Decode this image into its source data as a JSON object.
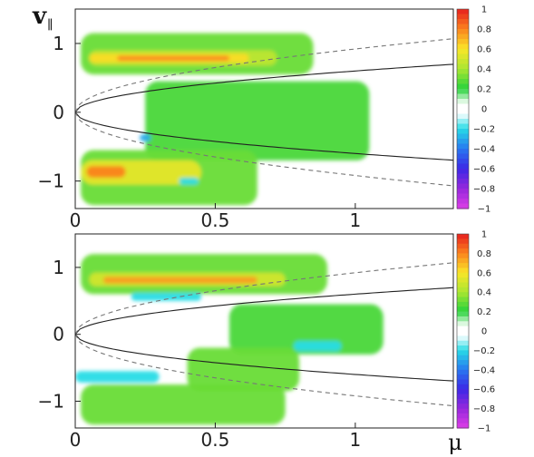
{
  "chart_data": [
    {
      "type": "heatmap",
      "panel": "top",
      "xlabel": "",
      "ylabel": "v∥",
      "x_ticks": [
        "0",
        "0.5",
        "1"
      ],
      "y_ticks": [
        "1",
        "0",
        "−1"
      ],
      "xlim": [
        0,
        1.35
      ],
      "ylim": [
        -1.4,
        1.5
      ],
      "colorbar": {
        "ticks": [
          "1",
          "0.8",
          "0.6",
          "0.4",
          "0.2",
          "0",
          "−0.2",
          "−0.4",
          "−0.6",
          "−0.8",
          "−1"
        ],
        "range": [
          -1,
          1
        ]
      },
      "blobs": [
        {
          "mu": [
            0.02,
            0.85
          ],
          "v": [
            0.55,
            1.15
          ],
          "value": 0.3
        },
        {
          "mu": [
            0.05,
            0.72
          ],
          "v": [
            0.68,
            0.9
          ],
          "value": 0.45
        },
        {
          "mu": [
            0.05,
            0.62
          ],
          "v": [
            0.72,
            0.85
          ],
          "value": 0.62
        },
        {
          "mu": [
            0.15,
            0.55
          ],
          "v": [
            0.75,
            0.82
          ],
          "value": 0.8
        },
        {
          "mu": [
            0.25,
            1.05
          ],
          "v": [
            -0.7,
            0.45
          ],
          "value": 0.25
        },
        {
          "mu": [
            0.02,
            0.65
          ],
          "v": [
            -1.35,
            -0.55
          ],
          "value": 0.3
        },
        {
          "mu": [
            0.02,
            0.45
          ],
          "v": [
            -1.05,
            -0.7
          ],
          "value": 0.55
        },
        {
          "mu": [
            0.04,
            0.18
          ],
          "v": [
            -0.95,
            -0.78
          ],
          "value": 0.8
        },
        {
          "mu": [
            0.37,
            0.44
          ],
          "v": [
            -1.05,
            -0.95
          ],
          "value": -0.2
        },
        {
          "mu": [
            0.23,
            0.27
          ],
          "v": [
            -0.42,
            -0.32
          ],
          "value": -0.3
        }
      ]
    },
    {
      "type": "heatmap",
      "panel": "bottom",
      "xlabel": "μ",
      "ylabel": "",
      "x_ticks": [
        "0",
        "0.5",
        "1"
      ],
      "y_ticks": [
        "1",
        "0",
        "−1"
      ],
      "xlim": [
        0,
        1.35
      ],
      "ylim": [
        -1.4,
        1.5
      ],
      "colorbar": {
        "ticks": [
          "1",
          "0.8",
          "0.6",
          "0.4",
          "0.2",
          "0",
          "−0.2",
          "−0.4",
          "−0.6",
          "−0.8",
          "−1"
        ],
        "range": [
          -1,
          1
        ]
      },
      "blobs": [
        {
          "mu": [
            0.02,
            0.9
          ],
          "v": [
            0.6,
            1.2
          ],
          "value": 0.3
        },
        {
          "mu": [
            0.05,
            0.75
          ],
          "v": [
            0.72,
            0.92
          ],
          "value": 0.5
        },
        {
          "mu": [
            0.1,
            0.65
          ],
          "v": [
            0.76,
            0.86
          ],
          "value": 0.75
        },
        {
          "mu": [
            0.55,
            1.1
          ],
          "v": [
            -0.3,
            0.45
          ],
          "value": 0.25
        },
        {
          "mu": [
            0.4,
            0.8
          ],
          "v": [
            -0.85,
            -0.2
          ],
          "value": 0.3
        },
        {
          "mu": [
            0.02,
            0.75
          ],
          "v": [
            -1.35,
            -0.75
          ],
          "value": 0.3
        },
        {
          "mu": [
            0.0,
            0.3
          ],
          "v": [
            -0.72,
            -0.55
          ],
          "value": -0.2
        },
        {
          "mu": [
            0.2,
            0.45
          ],
          "v": [
            0.5,
            0.62
          ],
          "value": -0.2
        },
        {
          "mu": [
            0.78,
            0.95
          ],
          "v": [
            -0.25,
            -0.1
          ],
          "value": -0.2
        }
      ]
    }
  ],
  "curves": {
    "solid": "v = ±0.6·sqrt(μ)",
    "dashed": "v = ±0.92·sqrt(μ)"
  }
}
